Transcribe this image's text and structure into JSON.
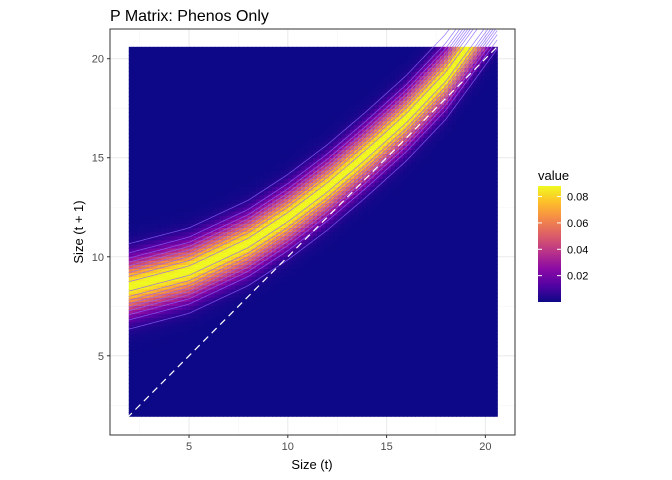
{
  "chart_data": {
    "type": "heatmap",
    "title": "P Matrix: Phenos Only",
    "xlabel": "Size (t)",
    "ylabel": "Size (t + 1)",
    "xlim": [
      1.0,
      21.5
    ],
    "ylim": [
      1.0,
      21.5
    ],
    "xticks": [
      5,
      10,
      15,
      20
    ],
    "yticks": [
      5,
      10,
      15,
      20
    ],
    "data_extent": {
      "x": [
        1.95,
        20.6
      ],
      "y": [
        1.95,
        20.6
      ]
    },
    "grid": true,
    "ridge": [
      {
        "x": 1.95,
        "y": 8.5
      },
      {
        "x": 5.0,
        "y": 9.3
      },
      {
        "x": 8.0,
        "y": 10.7
      },
      {
        "x": 10.0,
        "y": 12.0
      },
      {
        "x": 12.0,
        "y": 13.5
      },
      {
        "x": 14.0,
        "y": 15.2
      },
      {
        "x": 16.0,
        "y": 17.0
      },
      {
        "x": 18.0,
        "y": 19.1
      },
      {
        "x": 19.1,
        "y": 20.6
      }
    ],
    "ridge_sd": 0.9,
    "peak_value": 0.088,
    "identity_line": {
      "from": [
        1.0,
        1.0
      ],
      "to": [
        21.5,
        21.5
      ],
      "style": "dashed",
      "color": "#ffffff"
    },
    "contour_levels": [
      0.005,
      0.015,
      0.025,
      0.035,
      0.045,
      0.055,
      0.065,
      0.075,
      0.085
    ],
    "legend": {
      "title": "value",
      "ticks": [
        0.02,
        0.04,
        0.06,
        0.08
      ],
      "tick_labels": [
        "0.02",
        "0.04",
        "0.06",
        "0.08"
      ],
      "range": [
        0.0,
        0.088
      ],
      "placement": "right"
    },
    "colors": {
      "palette": [
        "#0d0887",
        "#5302a3",
        "#8b0aa5",
        "#b83289",
        "#db5c68",
        "#f48849",
        "#febd2a",
        "#f0f921"
      ],
      "panel_border": "#333333",
      "grid_major": "#ebebeb",
      "grid_minor": "#f5f5f5",
      "contour": "#8a64ff"
    }
  }
}
